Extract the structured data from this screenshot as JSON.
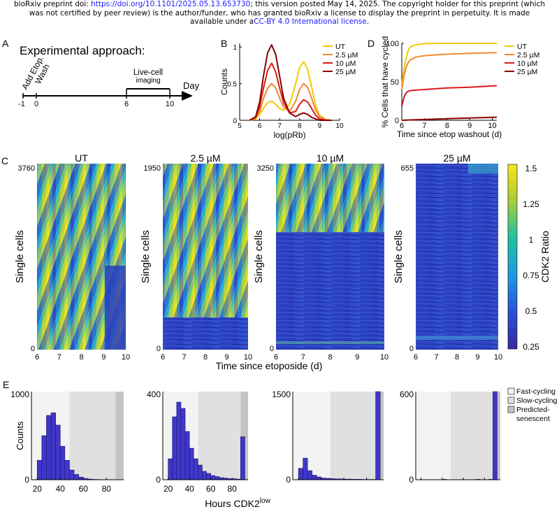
{
  "header": {
    "line1_pre": "bioRxiv preprint doi: ",
    "doi_link": "https://doi.org/10.1101/2025.05.13.653730",
    "line1_post": "; this version posted May 14, 2025. The copyright holder for this preprint (which",
    "line2": "was not certified by peer review) is the author/funder, who has granted bioRxiv a license to display the preprint in perpetuity. It is made",
    "line3_pre": "available under a",
    "license_link": "CC-BY 4.0 International license",
    "line3_post": "."
  },
  "panel_labels": [
    "A",
    "B",
    "C",
    "D",
    "E"
  ],
  "panelA": {
    "title": "Experimental approach:",
    "event_add": "Add Etop.",
    "event_wash": "Wash",
    "event_live1": "Live-cell",
    "event_live2": "imaging",
    "axis_unit": "Day",
    "ticks": [
      "-1",
      "0",
      "6",
      "10"
    ]
  },
  "panelB": {
    "chart_data": {
      "type": "line",
      "xlabel": "log(pRb)",
      "ylabel": "Counts",
      "xlim": [
        5,
        10
      ],
      "ylim": [
        0,
        1.05
      ],
      "xticks": [
        "5",
        "6",
        "7",
        "8",
        "9",
        "10"
      ],
      "yticks": [
        "0",
        "0.5",
        "1"
      ],
      "series": [
        {
          "name": "UT",
          "color": "#f5c800",
          "x": [
            5.5,
            5.8,
            6.0,
            6.2,
            6.4,
            6.6,
            6.8,
            7.0,
            7.2,
            7.5,
            7.8,
            8.0,
            8.2,
            8.4,
            8.6,
            8.8,
            9.0,
            9.3,
            9.6
          ],
          "y": [
            0,
            0.02,
            0.08,
            0.17,
            0.24,
            0.26,
            0.22,
            0.16,
            0.14,
            0.22,
            0.5,
            0.72,
            0.8,
            0.7,
            0.45,
            0.2,
            0.07,
            0.01,
            0
          ]
        },
        {
          "name": "2.5 µM",
          "color": "#f08a30",
          "x": [
            5.5,
            5.8,
            6.0,
            6.2,
            6.4,
            6.6,
            6.8,
            7.0,
            7.2,
            7.5,
            7.8,
            8.0,
            8.2,
            8.4,
            8.6,
            8.8,
            9.0,
            9.3,
            9.6
          ],
          "y": [
            0,
            0.03,
            0.12,
            0.3,
            0.44,
            0.5,
            0.44,
            0.3,
            0.18,
            0.12,
            0.26,
            0.42,
            0.5,
            0.45,
            0.3,
            0.14,
            0.05,
            0.01,
            0
          ]
        },
        {
          "name": "10 µM",
          "color": "#dd1a1a",
          "x": [
            5.5,
            5.8,
            6.0,
            6.2,
            6.4,
            6.6,
            6.8,
            7.0,
            7.2,
            7.5,
            7.8,
            8.0,
            8.2,
            8.4,
            8.6,
            8.8,
            9.0,
            9.3,
            9.6
          ],
          "y": [
            0,
            0.04,
            0.18,
            0.45,
            0.68,
            0.78,
            0.66,
            0.44,
            0.24,
            0.1,
            0.12,
            0.22,
            0.28,
            0.25,
            0.16,
            0.07,
            0.02,
            0,
            0
          ]
        },
        {
          "name": "25 µM",
          "color": "#8b0000",
          "x": [
            5.5,
            5.8,
            6.0,
            6.2,
            6.4,
            6.6,
            6.8,
            7.0,
            7.2,
            7.5,
            7.8,
            8.0,
            8.2,
            8.4,
            8.6,
            8.8,
            9.0,
            9.3,
            9.6
          ],
          "y": [
            0,
            0.05,
            0.25,
            0.62,
            0.92,
            1.03,
            0.9,
            0.6,
            0.3,
            0.1,
            0.05,
            0.08,
            0.1,
            0.08,
            0.04,
            0.02,
            0,
            0,
            0
          ]
        }
      ]
    }
  },
  "panelD": {
    "chart_data": {
      "type": "line",
      "xlabel": "Time since etop washout (d)",
      "ylabel": "% Cells that have cycled",
      "xlim": [
        6,
        10.2
      ],
      "ylim": [
        0,
        100
      ],
      "xticks": [
        "6",
        "7",
        "8",
        "9",
        "10"
      ],
      "yticks": [
        "0",
        "50",
        "100"
      ],
      "series": [
        {
          "name": "UT",
          "color": "#f5c800",
          "x": [
            6,
            6.1,
            6.2,
            6.3,
            6.4,
            6.6,
            6.8,
            7.0,
            7.5,
            8,
            9,
            10.2
          ],
          "y": [
            45,
            68,
            82,
            92,
            96,
            98,
            99,
            99.5,
            100,
            100,
            100,
            100
          ]
        },
        {
          "name": "2.5 µM",
          "color": "#f08a30",
          "x": [
            6,
            6.1,
            6.2,
            6.3,
            6.4,
            6.6,
            6.8,
            7.0,
            7.5,
            8,
            9,
            10.2
          ],
          "y": [
            40,
            58,
            70,
            76,
            79,
            82,
            83,
            84,
            85,
            86,
            87,
            88
          ]
        },
        {
          "name": "10 µM",
          "color": "#dd1a1a",
          "x": [
            6,
            6.1,
            6.2,
            6.3,
            6.5,
            7.0,
            8,
            9,
            10.2
          ],
          "y": [
            18,
            30,
            36,
            38,
            39,
            40,
            42,
            43,
            45
          ]
        },
        {
          "name": "25 µM",
          "color": "#8b0000",
          "x": [
            6,
            6.5,
            7,
            8,
            9,
            10.2
          ],
          "y": [
            0,
            0.5,
            1,
            2,
            3,
            4
          ]
        }
      ]
    }
  },
  "panelC": {
    "xlabel": "Time since etoposide (d)",
    "ylabel": "Single cells",
    "xticks": [
      "6",
      "7",
      "8",
      "9",
      "10"
    ],
    "colorbar_label": "CDK2 Ratio",
    "colorbar_ticks": [
      "1.5",
      "1.25",
      "1",
      "0.75",
      "0.5",
      "0.25"
    ],
    "heatmaps": [
      {
        "title": "UT",
        "ymax": "3760",
        "ymin": "0",
        "cycling_fraction": 1.0
      },
      {
        "title": "2.5 µM",
        "ymax": "1950",
        "ymin": "0",
        "cycling_fraction": 0.82
      },
      {
        "title": "10 µM",
        "ymax": "3250",
        "ymin": "0",
        "cycling_fraction": 0.3
      },
      {
        "title": "25 µM",
        "ymax": "655",
        "ymin": "0",
        "cycling_fraction": 0.02
      }
    ]
  },
  "panelE": {
    "xlabel": "Hours CDK2",
    "xlabel_sup": "low",
    "ylabel": "Counts",
    "legend": [
      "Fast-cycling",
      "Slow-cycling",
      "Predicted-",
      "senescent"
    ],
    "chart_data": {
      "type": "bar",
      "bins": [
        20,
        24,
        28,
        32,
        36,
        40,
        44,
        48,
        52,
        56,
        60,
        64,
        68,
        72,
        76,
        80,
        84,
        88
      ],
      "xlim": [
        15,
        95
      ],
      "xticks": [
        20,
        40,
        60,
        80
      ],
      "regions": [
        [
          15,
          48,
          "fast"
        ],
        [
          48,
          88,
          "slow"
        ],
        [
          88,
          95,
          "senescent"
        ]
      ],
      "histograms": [
        {
          "name": "UT",
          "ymax": 1000,
          "ytick_label": "1000",
          "values": [
            220,
            500,
            730,
            760,
            620,
            380,
            220,
            110,
            60,
            30,
            15,
            8,
            4,
            2,
            1,
            0,
            0,
            0
          ]
        },
        {
          "name": "2.5 µM",
          "ymax": 420,
          "ytick_label": "400",
          "values": [
            100,
            300,
            370,
            340,
            230,
            150,
            100,
            70,
            40,
            30,
            20,
            15,
            10,
            8,
            5,
            5,
            3,
            205
          ]
        },
        {
          "name": "10 µM",
          "ymax": 1550,
          "ytick_label": "1500",
          "values": [
            200,
            380,
            160,
            80,
            50,
            30,
            25,
            20,
            15,
            15,
            10,
            10,
            8,
            8,
            5,
            5,
            5,
            1550
          ]
        },
        {
          "name": "25 µM",
          "ymax": 620,
          "ytick_label": "600",
          "values": [
            0,
            0,
            0,
            0,
            0,
            3,
            0,
            0,
            0,
            0,
            0,
            0,
            0,
            3,
            0,
            0,
            3,
            620
          ]
        }
      ]
    }
  }
}
